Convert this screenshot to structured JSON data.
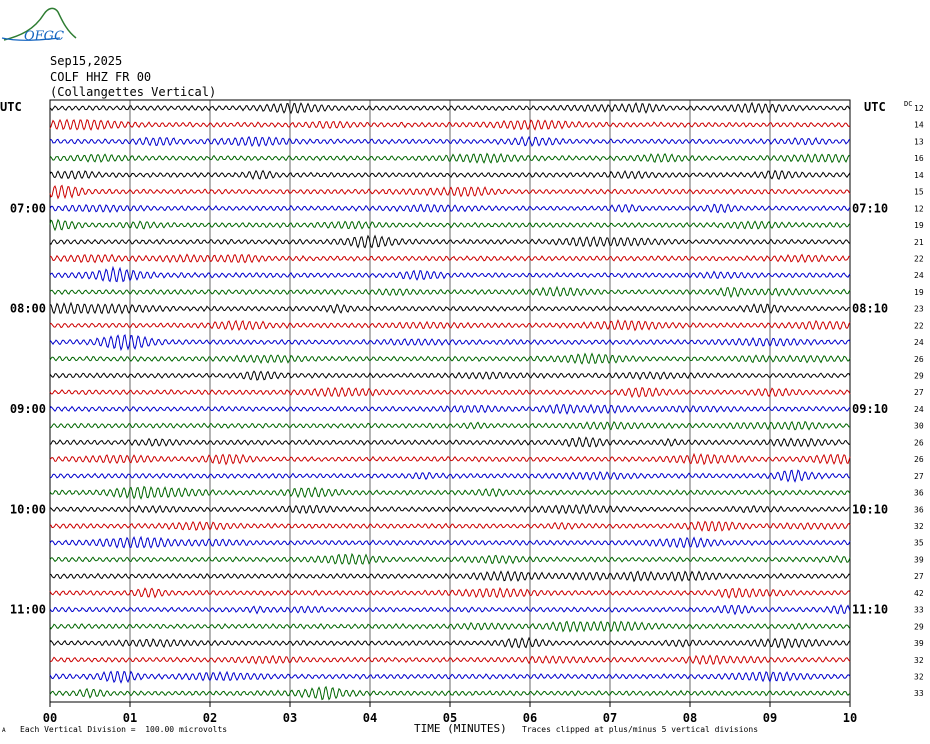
{
  "header": {
    "logo_text": "OFGC",
    "date": "Sep15,2025",
    "station": "COLF HHZ FR 00",
    "station_name": "(Collangettes Vertical)",
    "left_tz": "UTC",
    "right_tz": "UTC",
    "dc_label": "DC"
  },
  "footer": {
    "xlabel": "TIME (MINUTES)",
    "scale_note": "Each Vertical Division =  100.00 microvolts",
    "clip_note": "Traces clipped at plus/minus 5 vertical divisions",
    "corner_mark": "A"
  },
  "chart_data": {
    "type": "line",
    "title": "",
    "xlabel": "TIME (MINUTES)",
    "ylabel": "",
    "xlim": [
      0,
      10
    ],
    "x_ticks": [
      "00",
      "01",
      "02",
      "03",
      "04",
      "05",
      "06",
      "07",
      "08",
      "09",
      "10"
    ],
    "trace_count": 36,
    "trace_colors": [
      "#000000",
      "#cc0000",
      "#0000cc",
      "#006600"
    ],
    "left_hour_labels": [
      {
        "trace": 6,
        "label": "07:00"
      },
      {
        "trace": 12,
        "label": "08:00"
      },
      {
        "trace": 18,
        "label": "09:00"
      },
      {
        "trace": 24,
        "label": "10:00"
      },
      {
        "trace": 30,
        "label": "11:00"
      }
    ],
    "right_hour_labels": [
      {
        "trace": 6,
        "label": "07:10"
      },
      {
        "trace": 12,
        "label": "08:10"
      },
      {
        "trace": 18,
        "label": "09:10"
      },
      {
        "trace": 24,
        "label": "10:10"
      },
      {
        "trace": 30,
        "label": "11:10"
      }
    ],
    "dc_offsets": [
      12,
      14,
      13,
      16,
      14,
      15,
      12,
      19,
      21,
      22,
      24,
      19,
      23,
      22,
      24,
      26,
      29,
      27,
      24,
      30,
      26,
      26,
      27,
      36,
      36,
      32,
      35,
      39,
      27,
      42,
      33,
      29,
      39,
      32,
      32,
      33
    ],
    "grid": true
  }
}
